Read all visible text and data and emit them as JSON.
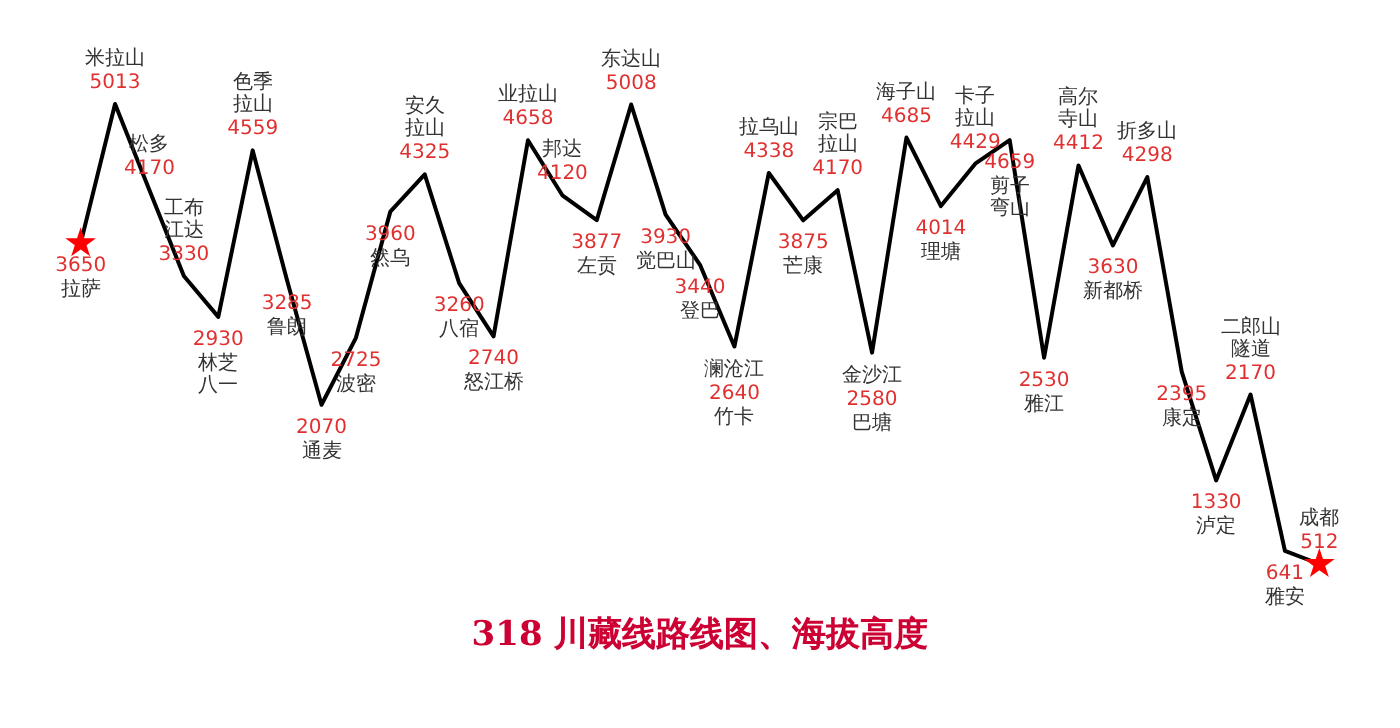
{
  "chart_data": {
    "type": "line",
    "title": "318 川藏线路线图、海拔高度",
    "categories": [
      "拉萨",
      "米拉山",
      "松多",
      "工布江达",
      "林芝八一",
      "色季拉山",
      "鲁朗",
      "通麦",
      "波密",
      "然乌",
      "安久拉山",
      "八宿",
      "怒江桥",
      "业拉山",
      "邦达",
      "左贡",
      "东达山",
      "觉巴山",
      "登巴",
      "竹卡",
      "拉乌山",
      "芒康",
      "宗巴拉山",
      "巴塘",
      "海子山",
      "理塘",
      "卡子拉山",
      "剪子弯山",
      "雅江",
      "高尔寺山",
      "新都桥",
      "折多山",
      "康定",
      "泸定",
      "二郎山隧道",
      "雅安",
      "成都"
    ],
    "series": [
      {
        "color": "#000000",
        "values": [
          3650,
          5013,
          4170,
          3330,
          2930,
          4559,
          3285,
          2070,
          2725,
          3960,
          4325,
          3260,
          2740,
          4658,
          4120,
          3877,
          5008,
          3930,
          3440,
          2640,
          4338,
          3875,
          4170,
          2580,
          4685,
          4014,
          4429,
          4659,
          2530,
          4412,
          3630,
          4298,
          2395,
          1330,
          2170,
          641,
          512
        ]
      }
    ],
    "data_labels": true,
    "annotations": [
      {
        "text": "澜沧江",
        "x": "竹卡",
        "y": 2640
      },
      {
        "text": "金沙江",
        "x": "巴塘",
        "y": 2580
      }
    ]
  }
}
